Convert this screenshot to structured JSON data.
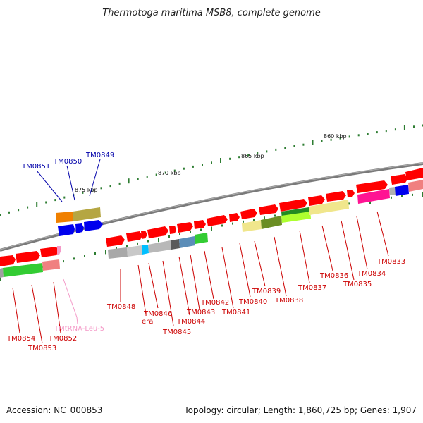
{
  "title": "Thermotoga maritima MSB8, complete genome",
  "footer": {
    "accession": "Accession: NC_000853",
    "summary": "Topology: circular; Length: 1,860,725 bp; Genes: 1,907"
  },
  "scale_labels": [
    "860 kbp",
    "865 kbp",
    "870 kbp",
    "875 kbp"
  ],
  "gene_labels": {
    "TM0851": "TM0851",
    "TM0850": "TM0850",
    "TM0849": "TM0849",
    "TM0854": "TM0854",
    "TM0853": "TM0853",
    "TM0852": "TM0852",
    "TMtRNA": "TMtRNA-Leu-5",
    "TM0848": "TM0848",
    "era": "era",
    "TM0846": "TM0846",
    "TM0845": "TM0845",
    "TM0844": "TM0844",
    "TM0843": "TM0843",
    "TM0842": "TM0842",
    "TM0841": "TM0841",
    "TM0840": "TM0840",
    "TM0839": "TM0839",
    "TM0838": "TM0838",
    "TM0837": "TM0837",
    "TM0836": "TM0836",
    "TM0835": "TM0835",
    "TM0834": "TM0834",
    "TM0833": "TM0833"
  },
  "colors": {
    "backbone": "#808080",
    "gene_red": "#ff0000",
    "gene_blue": "#0000ff",
    "label_red": "#cc0000",
    "label_blue": "#0000aa",
    "label_pink": "#f49ac8",
    "tick_green": "#2e7d32"
  }
}
